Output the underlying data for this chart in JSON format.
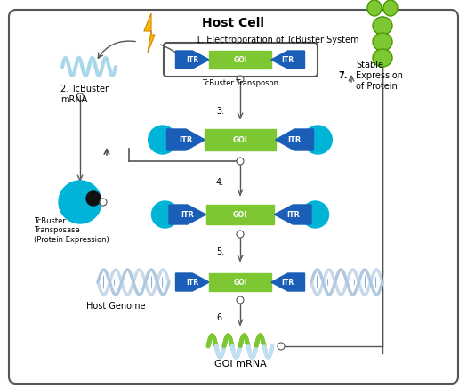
{
  "title": "Host Cell",
  "bg_color": "#ffffff",
  "border_color": "#555555",
  "step1_text": "1. Electroporation of TcBuster System",
  "step2_text": "2. TcBuster\nmRNA",
  "step3_label": "3.",
  "step4_label": "4.",
  "step5_label": "5.",
  "step6_label": "6.",
  "step7_label": "7.",
  "stable_label": "Stable\nExpression\nof Protein",
  "transposon_label": "TcBuster Transposon",
  "transposase_label": "TcBuster\nTransposase\n(Protein Expression)",
  "genome_label": "Host Genome",
  "goi_mrna_label": "GOI mRNA",
  "itr_color": "#1a5eb8",
  "goi_color": "#7dc832",
  "cyan_color": "#00b4d8",
  "green_protein": "#7dc832",
  "dark_gray": "#555555",
  "light_blue_mrna": "#a8d8ea",
  "white": "#ffffff",
  "lightning_color": "#FFB700",
  "lightning_edge": "#cc8800"
}
